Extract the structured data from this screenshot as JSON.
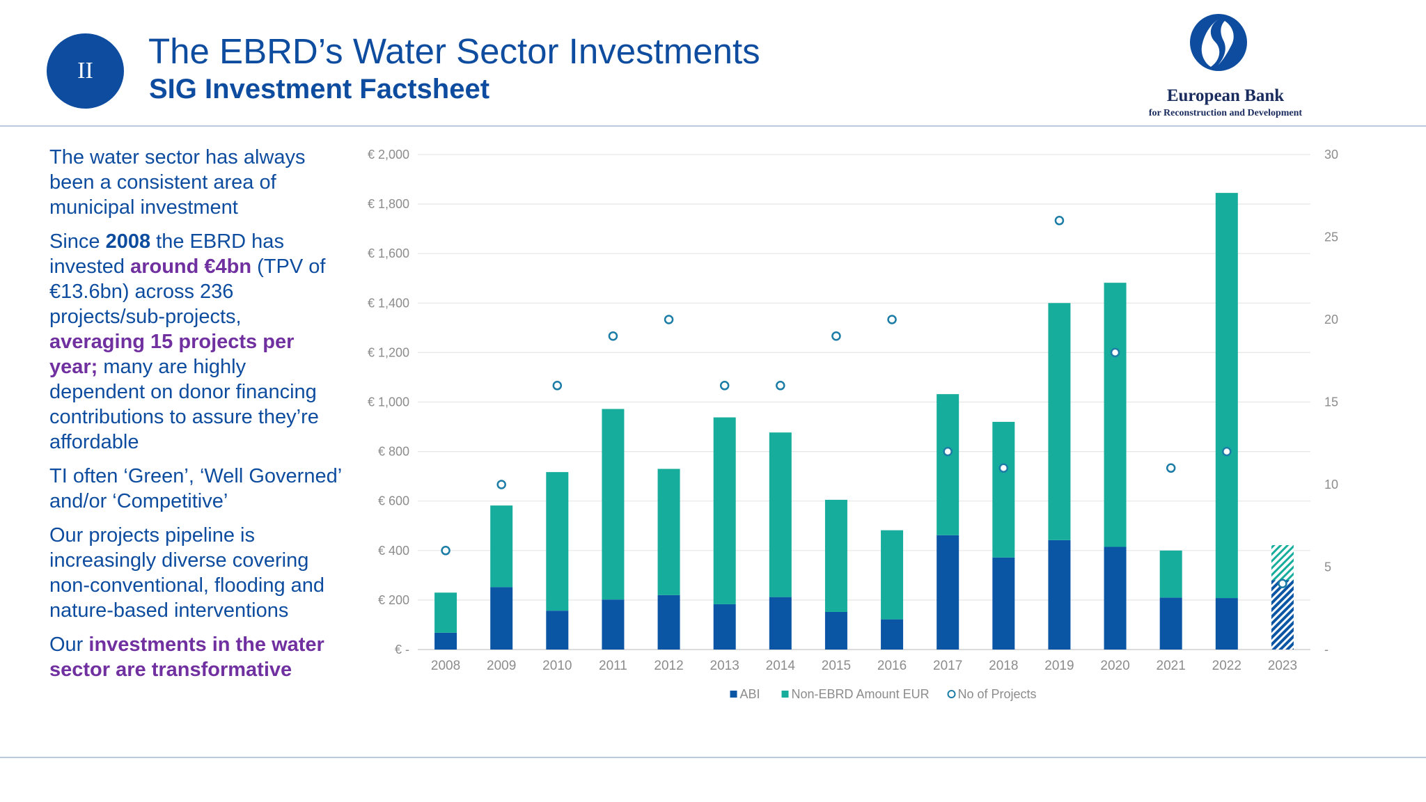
{
  "header": {
    "badge": "II",
    "title": "The EBRD’s Water Sector Investments",
    "subtitle": "SIG Investment Factsheet"
  },
  "logo": {
    "name": "European Bank",
    "sub": "for Reconstruction and Development"
  },
  "text": {
    "p1": "The water sector has always been a consistent area of municipal investment",
    "p2": {
      "a": "Since ",
      "b": "2008",
      "c": " the EBRD has invested ",
      "d": "around €4bn",
      "e": " (TPV of €13.6bn) across 236 projects/sub-projects, ",
      "f": "averaging 15 projects per year;",
      "g": " many are highly dependent on donor financing contributions to assure they’re affordable"
    },
    "p3": "TI often ‘Green’, ‘Well Governed’ and/or ‘Competitive’",
    "p4": "Our projects pipeline is increasingly diverse covering non-conventional, flooding and nature-based interventions",
    "p5": {
      "a": "Our ",
      "b": "investments in the water sector are transformative"
    }
  },
  "colors": {
    "abi": "#0b56a4",
    "non_ebrd": "#17ad9c",
    "projects_marker": "#1b7ca6",
    "title": "#0d4c9e",
    "purple": "#7030a0"
  },
  "chart_data": {
    "type": "bar",
    "stacked": true,
    "categories": [
      "2008",
      "2009",
      "2010",
      "2011",
      "2012",
      "2013",
      "2014",
      "2015",
      "2016",
      "2017",
      "2018",
      "2019",
      "2020",
      "2021",
      "2022",
      "2023"
    ],
    "series": [
      {
        "name": "ABI",
        "axis": "left",
        "values": [
          68,
          252,
          157,
          202,
          220,
          183,
          212,
          152,
          122,
          462,
          372,
          442,
          415,
          210,
          208,
          280
        ]
      },
      {
        "name": "Non-EBRD Amount EUR",
        "axis": "left",
        "values": [
          162,
          330,
          560,
          770,
          510,
          755,
          665,
          453,
          360,
          570,
          548,
          958,
          1067,
          190,
          1637,
          142
        ]
      },
      {
        "name": "No of Projects",
        "type": "scatter",
        "axis": "right",
        "values": [
          6,
          10,
          16,
          19,
          20,
          16,
          16,
          19,
          20,
          12,
          11,
          26,
          18,
          11,
          12,
          4
        ]
      }
    ],
    "hatched_categories": [
      "2023"
    ],
    "y_left": {
      "ylim": [
        0,
        2000
      ],
      "ticks": [
        "€ -",
        "€ 200",
        "€ 400",
        "€ 600",
        "€ 800",
        "€ 1,000",
        "€ 1,200",
        "€ 1,400",
        "€ 1,600",
        "€ 1,800",
        "€ 2,000"
      ]
    },
    "y_right": {
      "ylim": [
        0,
        30
      ],
      "ticks": [
        "-",
        "5",
        "10",
        "15",
        "20",
        "25",
        "30"
      ]
    },
    "legend": {
      "position": "bottom",
      "entries": [
        "ABI",
        "Non-EBRD Amount EUR",
        "No of Projects"
      ]
    },
    "grid": true
  }
}
